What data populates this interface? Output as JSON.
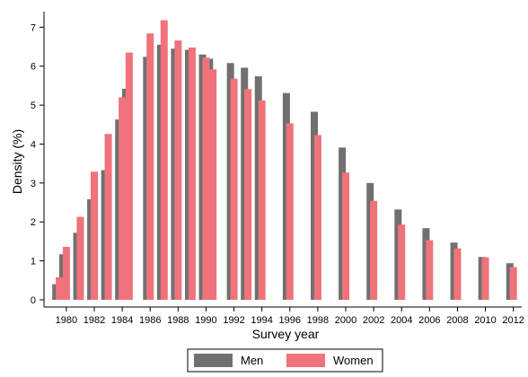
{
  "chart_data": {
    "type": "bar",
    "xlabel": "Survey year",
    "ylabel": "Density (%)",
    "ylim": [
      0,
      7.4
    ],
    "xlim": [
      1978.4,
      2012.6
    ],
    "y_ticks": [
      0,
      1,
      2,
      3,
      4,
      5,
      6,
      7
    ],
    "x_ticks": [
      1980,
      1982,
      1984,
      1986,
      1988,
      1990,
      1992,
      1994,
      1996,
      1998,
      2000,
      2002,
      2004,
      2006,
      2008,
      2010,
      2012
    ],
    "grid": false,
    "legend_position": "bottom",
    "series": [
      {
        "name": "Men",
        "color": "#707070",
        "x": [
          1979.25,
          1979.75,
          1980.75,
          1981.75,
          1982.75,
          1983.75,
          1984.25,
          1985.75,
          1986.75,
          1987.75,
          1988.75,
          1989.75,
          1990.25,
          1991.75,
          1992.75,
          1993.75,
          1995.75,
          1997.75,
          1999.75,
          2001.75,
          2003.75,
          2005.75,
          2007.75,
          2009.75,
          2011.75
        ],
        "values": [
          0.4,
          1.17,
          1.72,
          2.58,
          3.33,
          4.63,
          5.42,
          6.24,
          6.55,
          6.45,
          6.42,
          6.3,
          6.19,
          6.08,
          5.96,
          5.74,
          5.31,
          4.83,
          3.91,
          3.0,
          2.32,
          1.84,
          1.47,
          1.1,
          0.94
        ]
      },
      {
        "name": "Women",
        "color": "#f0727a",
        "x": [
          1979.5,
          1980.0,
          1981.0,
          1982.0,
          1983.0,
          1984.0,
          1984.5,
          1986.0,
          1987.0,
          1988.0,
          1989.0,
          1990.0,
          1990.5,
          1992.0,
          1993.0,
          1994.0,
          1996.0,
          1998.0,
          2000.0,
          2002.0,
          2004.0,
          2006.0,
          2008.0,
          2010.0,
          2012.0
        ],
        "values": [
          0.58,
          1.36,
          2.13,
          3.29,
          4.26,
          5.2,
          6.35,
          6.84,
          7.18,
          6.66,
          6.48,
          6.22,
          5.92,
          5.68,
          5.41,
          5.12,
          4.53,
          4.23,
          3.27,
          2.54,
          1.93,
          1.53,
          1.32,
          1.09,
          0.84
        ]
      }
    ]
  }
}
